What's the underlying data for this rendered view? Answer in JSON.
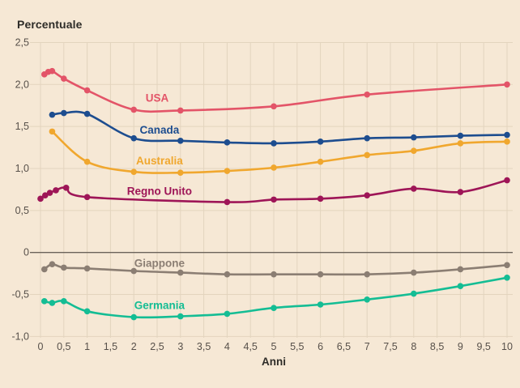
{
  "title": "Percentuale",
  "x_axis_label": "Anni",
  "colors": {
    "background": "#f6e8d5",
    "grid": "#e3d4be",
    "zero_line": "#6b635a",
    "title_text": "#2e2c28",
    "tick_text": "#57504a"
  },
  "chart_data": {
    "type": "line",
    "title": "Percentuale",
    "xlabel": "Anni",
    "ylabel": "Percentuale",
    "xlim": [
      0,
      10
    ],
    "ylim": [
      -1.0,
      2.5
    ],
    "grid": true,
    "legend_position": "inline-labels",
    "x_ticks": [
      0,
      0.5,
      1,
      1.5,
      2,
      2.5,
      3,
      3.5,
      4,
      4.5,
      5,
      5.5,
      6,
      6.5,
      7,
      7.5,
      8,
      8.5,
      9,
      9.5,
      10
    ],
    "x_tick_labels": [
      "0",
      "0,5",
      "1",
      "1,5",
      "2",
      "2,5",
      "3",
      "3,5",
      "4",
      "4,5",
      "5",
      "5,5",
      "6",
      "6,5",
      "7",
      "7,5",
      "8",
      "8,5",
      "9",
      "9,5",
      "10"
    ],
    "y_ticks": [
      2.5,
      2.0,
      1.5,
      1.0,
      0.5,
      0,
      -0.5,
      -1.0
    ],
    "y_tick_labels": [
      "2,5",
      "2,0",
      "1,5",
      "1,0",
      "0,5",
      "0",
      "-0,5",
      "-1,0"
    ],
    "series": [
      {
        "name": "USA",
        "color": "#e35468",
        "x": [
          0.083,
          0.167,
          0.25,
          0.5,
          1,
          2,
          3,
          5,
          7,
          10
        ],
        "y": [
          2.12,
          2.15,
          2.16,
          2.07,
          1.93,
          1.7,
          1.69,
          1.74,
          1.88,
          2.0
        ],
        "label_pos": {
          "x": 2.5,
          "y": 1.84
        }
      },
      {
        "name": "Canada",
        "color": "#1d4d8f",
        "x": [
          0.25,
          0.5,
          1,
          2,
          3,
          4,
          5,
          6,
          7,
          8,
          9,
          10
        ],
        "y": [
          1.64,
          1.66,
          1.65,
          1.36,
          1.33,
          1.31,
          1.3,
          1.32,
          1.36,
          1.37,
          1.39,
          1.4
        ],
        "label_pos": {
          "x": 2.55,
          "y": 1.46
        }
      },
      {
        "name": "Australia",
        "color": "#f0a72e",
        "x": [
          0.25,
          1,
          2,
          3,
          4,
          5,
          6,
          7,
          8,
          9,
          10
        ],
        "y": [
          1.44,
          1.08,
          0.96,
          0.95,
          0.97,
          1.01,
          1.08,
          1.16,
          1.21,
          1.3,
          1.32
        ],
        "label_pos": {
          "x": 2.55,
          "y": 1.09
        }
      },
      {
        "name": "Regno Unito",
        "color": "#9e1557",
        "x": [
          0,
          0.1,
          0.2,
          0.33,
          0.55,
          1,
          4,
          5,
          6,
          7,
          8,
          9,
          10
        ],
        "y": [
          0.64,
          0.68,
          0.71,
          0.74,
          0.77,
          0.66,
          0.6,
          0.63,
          0.64,
          0.68,
          0.76,
          0.72,
          0.86
        ],
        "label_pos": {
          "x": 2.55,
          "y": 0.73
        }
      },
      {
        "name": "Giappone",
        "color": "#8b7e73",
        "x": [
          0.083,
          0.25,
          0.5,
          1,
          2,
          3,
          4,
          5,
          6,
          7,
          8,
          9,
          10
        ],
        "y": [
          -0.2,
          -0.14,
          -0.18,
          -0.19,
          -0.22,
          -0.24,
          -0.26,
          -0.26,
          -0.26,
          -0.26,
          -0.24,
          -0.2,
          -0.15
        ],
        "label_pos": {
          "x": 2.55,
          "y": -0.13
        }
      },
      {
        "name": "Germania",
        "color": "#14bd94",
        "x": [
          0.083,
          0.25,
          0.5,
          1,
          2,
          3,
          4,
          5,
          6,
          7,
          8,
          9,
          10
        ],
        "y": [
          -0.58,
          -0.6,
          -0.58,
          -0.7,
          -0.77,
          -0.76,
          -0.73,
          -0.66,
          -0.62,
          -0.56,
          -0.49,
          -0.4,
          -0.3
        ],
        "label_pos": {
          "x": 2.55,
          "y": -0.63
        }
      }
    ]
  }
}
